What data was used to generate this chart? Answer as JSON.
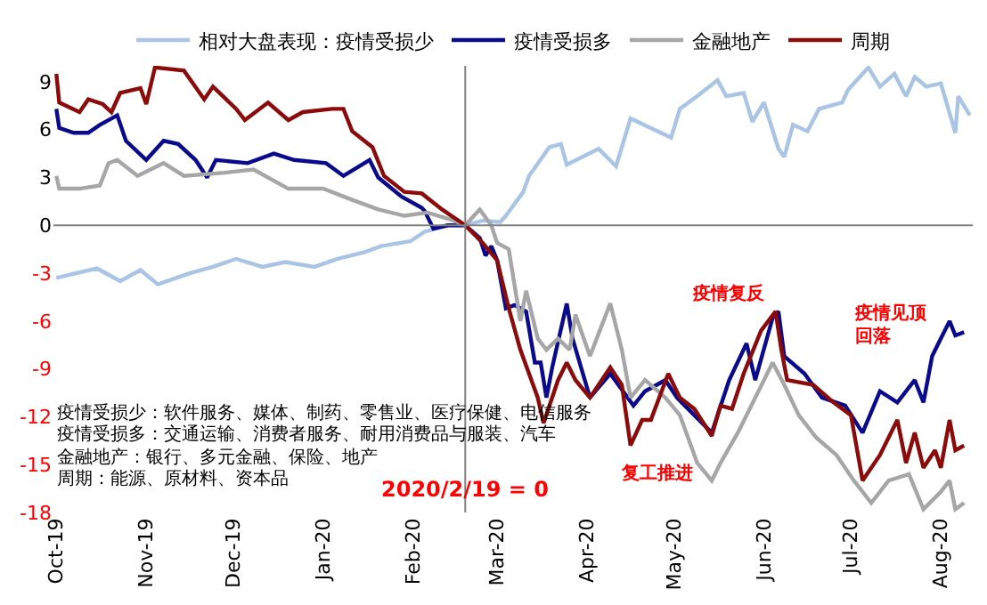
{
  "chart_data": {
    "type": "line",
    "legend": "top",
    "marker": "none",
    "line_style": "solid",
    "xlim": [
      "2019-09-30",
      "2020-08-12"
    ],
    "ylim": [
      -18,
      10
    ],
    "yticks": [
      -18,
      -15,
      -12,
      -9,
      -6,
      -3,
      0,
      3,
      6,
      9
    ],
    "xticks": [
      {
        "value": "2019-10-01",
        "label": "Oct-19"
      },
      {
        "value": "2019-11-01",
        "label": "Nov-19"
      },
      {
        "value": "2019-12-01",
        "label": "Dec-19"
      },
      {
        "value": "2020-01-01",
        "label": "Jan-20"
      },
      {
        "value": "2020-02-01",
        "label": "Feb-20"
      },
      {
        "value": "2020-03-01",
        "label": "Mar-20"
      },
      {
        "value": "2020-04-01",
        "label": "Apr-20"
      },
      {
        "value": "2020-05-01",
        "label": "May-20"
      },
      {
        "value": "2020-06-01",
        "label": "Jun-20"
      },
      {
        "value": "2020-07-01",
        "label": "Jul-20"
      },
      {
        "value": "2020-08-01",
        "label": "Aug-20"
      }
    ],
    "ref_lines": [
      {
        "axis": "x",
        "value": "2020-02-19",
        "label": "2020/2/19 = 0",
        "color": "#808080"
      },
      {
        "axis": "y",
        "value": 0,
        "color": "#808080"
      }
    ],
    "series": [
      {
        "name": "相对大盘表现：疫情受损少",
        "color": "#a9c4e4",
        "x": [
          "2019-10-01",
          "2019-10-15",
          "2019-10-23",
          "2019-10-30",
          "2019-11-05",
          "2019-11-16",
          "2019-11-24",
          "2019-12-02",
          "2019-12-11",
          "2019-12-19",
          "2019-12-29",
          "2020-01-06",
          "2020-01-15",
          "2020-01-21",
          "2020-01-31",
          "2020-02-05",
          "2020-02-13",
          "2020-02-19",
          "2020-02-25",
          "2020-03-02",
          "2020-03-04",
          "2020-03-10",
          "2020-03-12",
          "2020-03-19",
          "2020-03-23",
          "2020-03-25",
          "2020-04-05",
          "2020-04-11",
          "2020-04-16",
          "2020-04-30",
          "2020-05-03",
          "2020-05-09",
          "2020-05-16",
          "2020-05-19",
          "2020-05-25",
          "2020-05-28",
          "2020-06-01",
          "2020-06-06",
          "2020-06-08",
          "2020-06-11",
          "2020-06-16",
          "2020-06-20",
          "2020-06-28",
          "2020-06-30",
          "2020-07-07",
          "2020-07-11",
          "2020-07-16",
          "2020-07-20",
          "2020-07-23",
          "2020-07-27",
          "2020-08-01",
          "2020-08-06",
          "2020-08-07",
          "2020-08-11"
        ],
        "values": [
          -3.3,
          -2.7,
          -3.5,
          -2.8,
          -3.7,
          -3.0,
          -2.6,
          -2.1,
          -2.6,
          -2.3,
          -2.6,
          -2.1,
          -1.7,
          -1.3,
          -1.0,
          -0.4,
          0,
          0,
          0.3,
          0.2,
          0.6,
          2.1,
          3.1,
          4.9,
          5.1,
          3.8,
          4.8,
          3.7,
          6.7,
          5.5,
          7.3,
          8.1,
          9.1,
          8.1,
          8.3,
          6.5,
          7.7,
          4.8,
          4.3,
          6.3,
          5.9,
          7.3,
          7.7,
          8.5,
          9.9,
          8.7,
          9.5,
          8.1,
          9.3,
          8.7,
          8.9,
          5.8,
          8.1,
          6.9
        ]
      },
      {
        "name": "疫情受损多",
        "color": "#0a0a8c",
        "x": [
          "2019-10-01",
          "2019-10-02",
          "2019-10-07",
          "2019-10-12",
          "2019-10-16",
          "2019-10-22",
          "2019-10-25",
          "2019-11-01",
          "2019-11-07",
          "2019-11-12",
          "2019-11-18",
          "2019-11-22",
          "2019-11-25",
          "2019-12-06",
          "2019-12-15",
          "2019-12-22",
          "2020-01-02",
          "2020-01-08",
          "2020-01-17",
          "2020-01-20",
          "2020-01-28",
          "2020-02-04",
          "2020-02-05",
          "2020-02-08",
          "2020-02-13",
          "2020-02-19",
          "2020-02-24",
          "2020-02-26",
          "2020-02-28",
          "2020-03-01",
          "2020-03-04",
          "2020-03-07",
          "2020-03-11",
          "2020-03-14",
          "2020-03-16",
          "2020-03-18",
          "2020-03-20",
          "2020-03-25",
          "2020-03-27",
          "2020-04-02",
          "2020-04-09",
          "2020-04-17",
          "2020-04-21",
          "2020-04-28",
          "2020-05-02",
          "2020-05-14",
          "2020-05-20",
          "2020-05-26",
          "2020-05-29",
          "2020-06-04",
          "2020-06-06",
          "2020-06-08",
          "2020-06-15",
          "2020-06-21",
          "2020-06-29",
          "2020-07-05",
          "2020-07-11",
          "2020-07-17",
          "2020-07-23",
          "2020-07-26",
          "2020-07-29",
          "2020-08-01",
          "2020-08-04",
          "2020-08-06",
          "2020-08-09"
        ],
        "values": [
          7.3,
          6.1,
          5.8,
          5.8,
          6.3,
          6.9,
          5.3,
          4.1,
          5.3,
          5.1,
          4.1,
          3.0,
          4.1,
          3.9,
          4.5,
          4.1,
          3.9,
          3.1,
          4.1,
          3.0,
          1.8,
          1.1,
          0.9,
          -0.2,
          0,
          0,
          -0.8,
          -1.9,
          -1.3,
          -2.2,
          -5.2,
          -5.0,
          -5.4,
          -8.6,
          -8.6,
          -10.8,
          -8.9,
          -4.9,
          -7.1,
          -10.8,
          -9.3,
          -11.3,
          -10.4,
          -9.7,
          -10.8,
          -13.0,
          -9.7,
          -7.4,
          -9.7,
          -5.8,
          -5.4,
          -8.2,
          -9.3,
          -10.8,
          -11.3,
          -13.0,
          -10.4,
          -11.1,
          -9.7,
          -11.1,
          -8.2,
          -7.1,
          -6.0,
          -6.9,
          -6.7
        ]
      },
      {
        "name": "金融地产",
        "color": "#a6a6a6",
        "x": [
          "2019-10-01",
          "2019-10-02",
          "2019-10-09",
          "2019-10-16",
          "2019-10-19",
          "2019-10-22",
          "2019-10-29",
          "2019-11-07",
          "2019-11-14",
          "2019-11-28",
          "2019-12-08",
          "2019-12-20",
          "2020-01-01",
          "2020-01-11",
          "2020-01-20",
          "2020-01-29",
          "2020-02-06",
          "2020-02-15",
          "2020-02-19",
          "2020-02-24",
          "2020-02-28",
          "2020-03-01",
          "2020-03-05",
          "2020-03-09",
          "2020-03-11",
          "2020-03-15",
          "2020-03-18",
          "2020-03-22",
          "2020-03-26",
          "2020-03-28",
          "2020-04-02",
          "2020-04-09",
          "2020-04-13",
          "2020-04-16",
          "2020-04-21",
          "2020-04-28",
          "2020-05-03",
          "2020-05-09",
          "2020-05-14",
          "2020-05-17",
          "2020-05-23",
          "2020-05-29",
          "2020-06-04",
          "2020-06-08",
          "2020-06-13",
          "2020-06-19",
          "2020-06-26",
          "2020-07-02",
          "2020-07-08",
          "2020-07-14",
          "2020-07-21",
          "2020-07-26",
          "2020-08-01",
          "2020-08-04",
          "2020-08-06",
          "2020-08-09"
        ],
        "values": [
          3.1,
          2.3,
          2.3,
          2.5,
          3.9,
          4.1,
          3.1,
          3.9,
          3.1,
          3.3,
          3.5,
          2.3,
          2.3,
          1.6,
          1.0,
          0.6,
          0.8,
          0.3,
          0,
          1.0,
          0,
          -1.1,
          -1.5,
          -6.0,
          -4.1,
          -7.1,
          -7.8,
          -7.1,
          -7.8,
          -5.6,
          -8.2,
          -4.9,
          -7.8,
          -10.8,
          -9.7,
          -10.8,
          -11.9,
          -14.9,
          -16.0,
          -14.9,
          -13.0,
          -10.8,
          -8.6,
          -10.0,
          -11.9,
          -13.3,
          -14.4,
          -16.0,
          -17.4,
          -16.0,
          -15.6,
          -17.8,
          -16.7,
          -16.0,
          -17.8,
          -17.4
        ]
      },
      {
        "name": "周期",
        "color": "#8b0a0a",
        "x": [
          "2019-10-01",
          "2019-10-02",
          "2019-10-09",
          "2019-10-12",
          "2019-10-17",
          "2019-10-20",
          "2019-10-23",
          "2019-10-30",
          "2019-11-01",
          "2019-11-04",
          "2019-11-14",
          "2019-11-21",
          "2019-11-24",
          "2019-12-02",
          "2019-12-05",
          "2019-12-13",
          "2019-12-20",
          "2019-12-25",
          "2020-01-04",
          "2020-01-08",
          "2020-01-11",
          "2020-01-18",
          "2020-01-22",
          "2020-01-29",
          "2020-02-04",
          "2020-02-11",
          "2020-02-19",
          "2020-02-25",
          "2020-03-01",
          "2020-03-05",
          "2020-03-09",
          "2020-03-12",
          "2020-03-15",
          "2020-03-17",
          "2020-03-22",
          "2020-03-25",
          "2020-03-28",
          "2020-04-02",
          "2020-04-09",
          "2020-04-13",
          "2020-04-16",
          "2020-04-20",
          "2020-04-23",
          "2020-04-29",
          "2020-05-03",
          "2020-05-08",
          "2020-05-14",
          "2020-05-17",
          "2020-05-21",
          "2020-05-25",
          "2020-05-31",
          "2020-06-05",
          "2020-06-07",
          "2020-06-09",
          "2020-06-18",
          "2020-06-25",
          "2020-07-01",
          "2020-07-05",
          "2020-07-11",
          "2020-07-17",
          "2020-07-20",
          "2020-07-23",
          "2020-07-26",
          "2020-07-30",
          "2020-08-01",
          "2020-08-04",
          "2020-08-06",
          "2020-08-09"
        ],
        "values": [
          9.5,
          7.7,
          7.1,
          7.9,
          7.6,
          7.1,
          8.3,
          8.6,
          7.6,
          9.9,
          9.7,
          7.9,
          8.7,
          7.3,
          6.6,
          7.7,
          6.6,
          7.1,
          7.3,
          7.3,
          5.9,
          4.9,
          3.1,
          2.1,
          2.0,
          1.0,
          0,
          -1.1,
          -2.2,
          -5.2,
          -7.8,
          -9.3,
          -10.8,
          -12.4,
          -9.7,
          -8.6,
          -9.7,
          -10.8,
          -8.9,
          -10.0,
          -13.8,
          -12.2,
          -12.2,
          -9.3,
          -10.8,
          -11.5,
          -13.2,
          -11.3,
          -11.5,
          -9.3,
          -6.6,
          -5.4,
          -7.8,
          -9.7,
          -10.0,
          -11.1,
          -11.9,
          -16.0,
          -14.4,
          -12.2,
          -14.9,
          -13.0,
          -15.2,
          -14.1,
          -15.2,
          -12.2,
          -14.1,
          -13.8
        ]
      }
    ],
    "annotations": [
      "疫情受损少：软件服务、媒体、制药、零售业、医疗保健、电信服务",
      "疫情受损多：交通运输、消费者服务、耐用消费品与服装、汽车",
      "金融地产：银行、多元金融、保险、地产",
      "周期：能源、原材料、资本品",
      "疫情复反",
      "复工推进",
      "疫情见顶回落"
    ]
  }
}
